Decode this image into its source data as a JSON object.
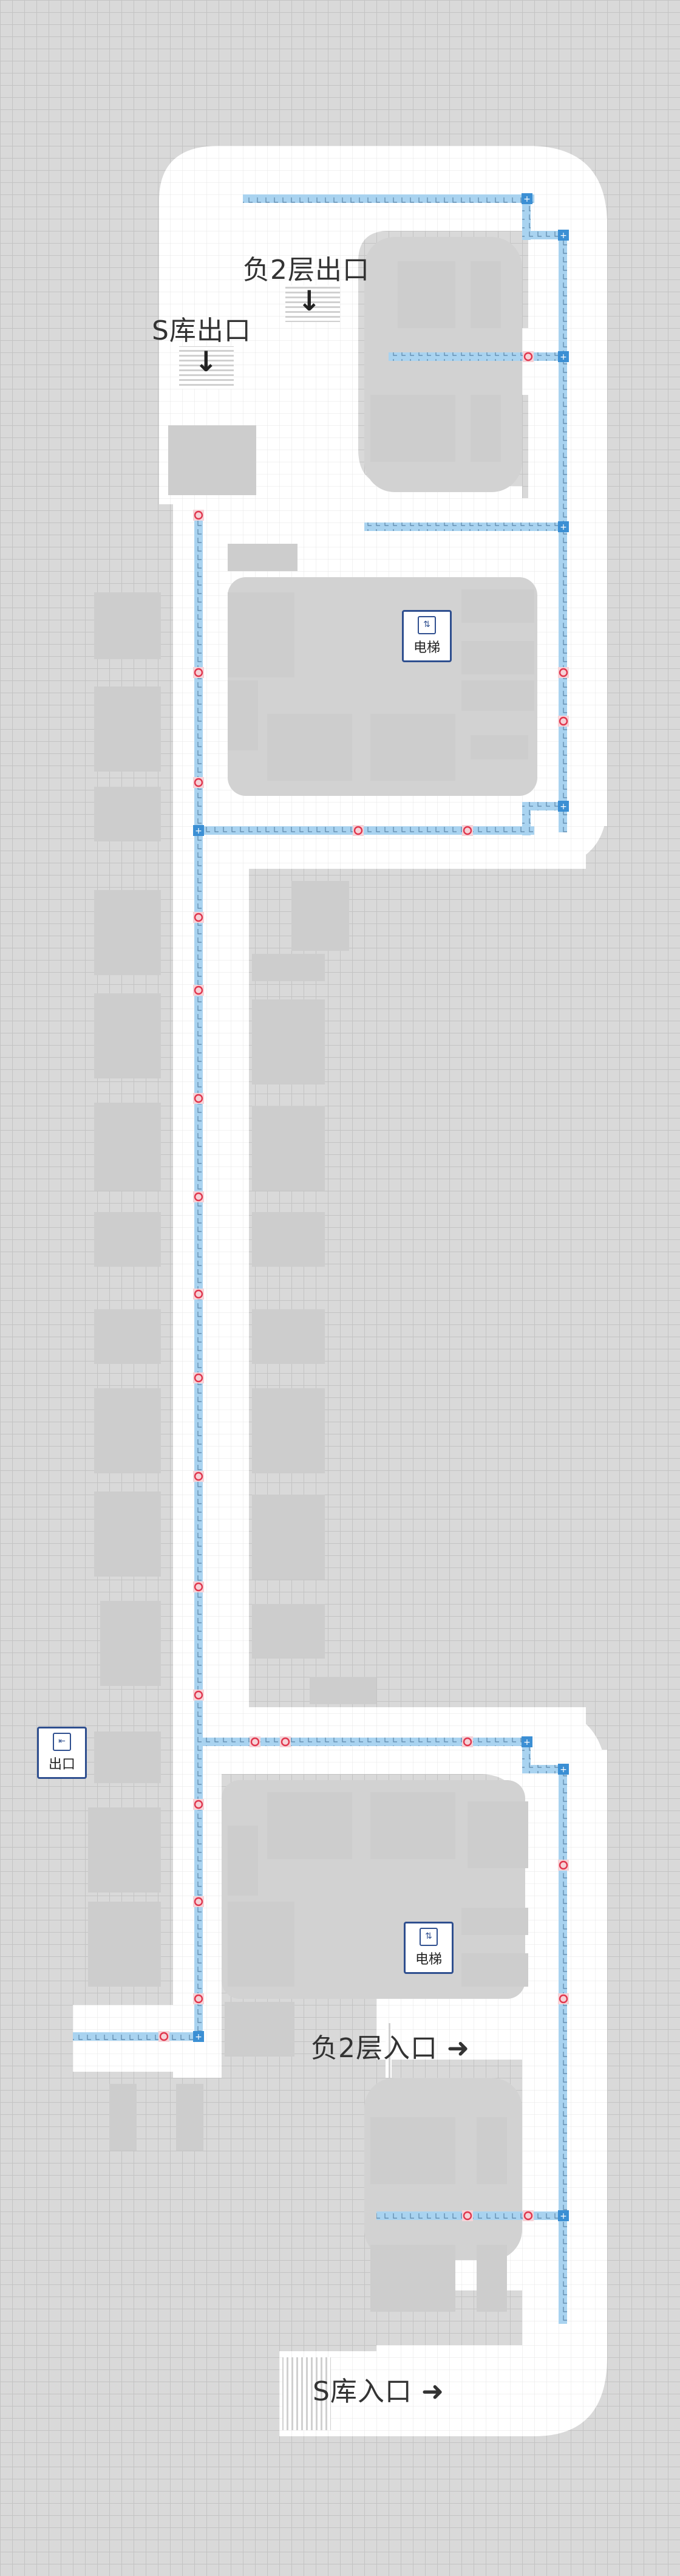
{
  "labels": {
    "b2_exit": "负2层出口",
    "s_exit": "S库出口",
    "b2_entry": "负2层入口",
    "s_entry": "S库入口",
    "arrow_right": "➔",
    "arrow_down": "🡓"
  },
  "pois": {
    "elevator_upper": {
      "label": "电梯",
      "icon": "elevator-icon"
    },
    "elevator_lower": {
      "label": "电梯",
      "icon": "elevator-icon"
    },
    "exit_door": {
      "label": "出口",
      "icon": "exit-door-icon"
    }
  },
  "colors": {
    "background": "#d9d9d9",
    "grid": "#c3c3c3",
    "road": "#ffffff",
    "block": "#cdcdcd",
    "parking_lane": "#a9d3f0",
    "node": "#3b8fd4",
    "charger": "#e0364d",
    "label_box_border": "#2f4f8f"
  },
  "legend_icons": {
    "parking_mark": "L",
    "node_mark": "+",
    "charger_mark": "charger-icon"
  }
}
